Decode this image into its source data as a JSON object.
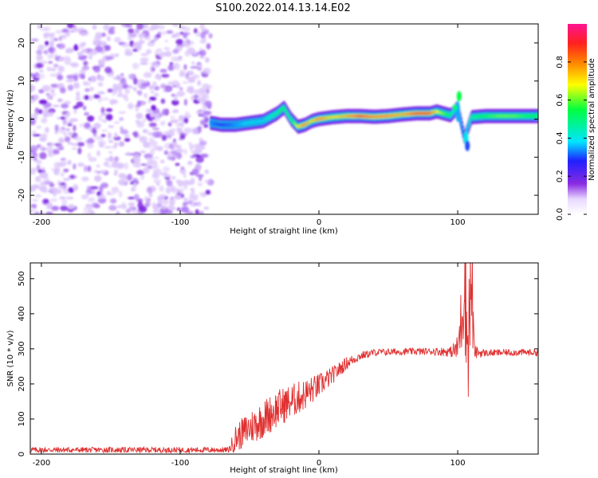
{
  "figure_title": "S100.2022.014.13.14.E02",
  "colors": {
    "snr_line": "#e03030",
    "colormap": [
      "#ffffff",
      "#e8d8ff",
      "#c99bff",
      "#8a2be2",
      "#2020ff",
      "#00e5ff",
      "#00ff40",
      "#ffff00",
      "#ff8000",
      "#ff2020",
      "#ff1493"
    ]
  },
  "chart_data": [
    {
      "type": "heatmap",
      "title": "",
      "xlabel": "Height of straight line (km)",
      "ylabel": "Frequency (Hz)",
      "xlim": [
        -208,
        158
      ],
      "ylim": [
        -25,
        25
      ],
      "xticks": [
        -200,
        -100,
        0,
        100
      ],
      "yticks": [
        -20,
        -10,
        0,
        10,
        20
      ],
      "colorbar": {
        "label": "Normalized spectral amplitude",
        "range": [
          0,
          1
        ],
        "ticks": [
          0.0,
          0.2,
          0.4,
          0.6,
          0.8
        ]
      },
      "noise_region": {
        "x": [
          -208,
          -78
        ],
        "y": [
          -25,
          25
        ]
      },
      "ridge": {
        "x": [
          -78,
          -70,
          -60,
          -50,
          -40,
          -30,
          -25,
          -20,
          -15,
          -10,
          -5,
          0,
          10,
          20,
          30,
          40,
          50,
          60,
          70,
          80,
          85,
          90,
          95,
          100,
          105,
          110,
          120,
          130,
          140,
          150,
          158
        ],
        "y": [
          -1,
          -1.5,
          -1.5,
          -1,
          -0.5,
          1.5,
          3,
          0,
          -2,
          -1.5,
          -0.5,
          0,
          0.5,
          0.8,
          0.8,
          0.6,
          0.8,
          1.2,
          1.5,
          1.5,
          2,
          1.5,
          1,
          3,
          -5,
          0.5,
          0.8,
          0.8,
          0.8,
          0.8,
          0.8
        ],
        "amplitude": [
          0.35,
          0.3,
          0.35,
          0.4,
          0.4,
          0.5,
          0.55,
          0.5,
          0.7,
          0.8,
          0.7,
          0.8,
          0.7,
          0.75,
          0.85,
          0.8,
          0.8,
          0.75,
          0.85,
          0.85,
          0.7,
          0.6,
          0.5,
          0.4,
          0.3,
          0.5,
          0.55,
          0.6,
          0.6,
          0.55,
          0.55
        ]
      }
    },
    {
      "type": "line",
      "title": "",
      "xlabel": "Height of straight line (km)",
      "ylabel": "SNR (10 * v/v)",
      "xlim": [
        -208,
        158
      ],
      "ylim": [
        0,
        545
      ],
      "xticks": [
        -200,
        -100,
        0,
        100
      ],
      "yticks": [
        0,
        100,
        200,
        300,
        400,
        500
      ],
      "envelope_x": [
        -208,
        -150,
        -100,
        -65,
        -60,
        -50,
        -40,
        -30,
        -20,
        -10,
        0,
        10,
        20,
        30,
        40,
        60,
        80,
        95,
        100,
        103,
        105,
        107,
        110,
        112,
        120,
        140,
        158
      ],
      "envelope_y": [
        12,
        12,
        12,
        12,
        45,
        75,
        100,
        130,
        150,
        170,
        195,
        225,
        260,
        280,
        290,
        292,
        293,
        292,
        300,
        400,
        540,
        300,
        500,
        290,
        288,
        290,
        290
      ],
      "noise_amplitude": [
        8,
        8,
        8,
        8,
        40,
        50,
        55,
        55,
        50,
        45,
        35,
        25,
        18,
        12,
        10,
        10,
        10,
        15,
        40,
        120,
        220,
        180,
        200,
        20,
        10,
        10,
        10
      ]
    }
  ]
}
